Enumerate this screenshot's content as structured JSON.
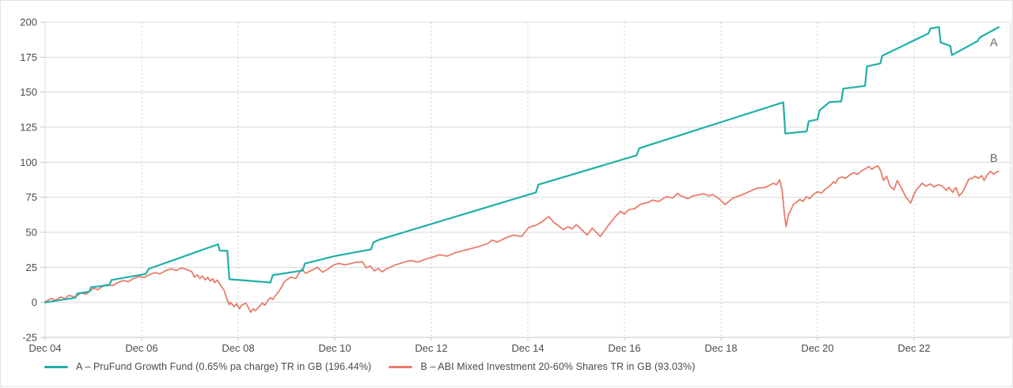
{
  "chart_data": {
    "type": "line",
    "title": "",
    "grid": {
      "horizontal": "solid",
      "vertical": "dotted"
    },
    "legend_position": "bottom-left",
    "x_axis": {
      "unit": "months_since_dec_2004",
      "domain_months": [
        0,
        240
      ],
      "tick_months": [
        0,
        24,
        48,
        72,
        96,
        120,
        144,
        168,
        192,
        216
      ],
      "tick_labels": [
        "Dec 04",
        "Dec 06",
        "Dec 08",
        "Dec 10",
        "Dec 12",
        "Dec 14",
        "Dec 16",
        "Dec 18",
        "Dec 20",
        "Dec 22"
      ]
    },
    "y_axis": {
      "range": [
        -25,
        200
      ],
      "tick_values": [
        200,
        175,
        150,
        125,
        100,
        75,
        50,
        25,
        0,
        -25
      ],
      "tick_labels": [
        "200",
        "175",
        "150",
        "125",
        "100",
        "75",
        "50",
        "25",
        "0",
        "-25"
      ]
    },
    "series": [
      {
        "id": "A",
        "end_label": "A",
        "name": "A – PruFund Growth Fund (0.65% pa charge) TR in GB (196.44%)",
        "final_return_pct": 196.44,
        "color": "#1fb0a6",
        "stroke_width": 2.2,
        "points": [
          [
            0,
            0
          ],
          [
            2,
            0.8
          ],
          [
            5,
            2.2
          ],
          [
            7.5,
            3.3
          ],
          [
            8,
            6.3
          ],
          [
            11,
            7.7
          ],
          [
            11.4,
            10.8
          ],
          [
            16,
            12.3
          ],
          [
            16.5,
            16
          ],
          [
            25,
            20.3
          ],
          [
            25.8,
            24
          ],
          [
            43,
            41.5
          ],
          [
            43.4,
            37
          ],
          [
            45.3,
            36.8
          ],
          [
            45.8,
            16.5
          ],
          [
            49,
            15.8
          ],
          [
            56,
            14.2
          ],
          [
            56.6,
            19.5
          ],
          [
            64,
            22.7
          ],
          [
            64.6,
            27.8
          ],
          [
            72,
            33
          ],
          [
            81,
            37.8
          ],
          [
            81.6,
            42.8
          ],
          [
            83,
            44.7
          ],
          [
            122,
            78.5
          ],
          [
            122.6,
            84
          ],
          [
            147,
            104.9
          ],
          [
            147.7,
            110
          ],
          [
            183.5,
            142.8
          ],
          [
            184,
            120.5
          ],
          [
            189.3,
            122
          ],
          [
            189.8,
            129.3
          ],
          [
            192,
            130.5
          ],
          [
            192.5,
            137
          ],
          [
            195,
            143
          ],
          [
            197.9,
            143.4
          ],
          [
            198.4,
            152.5
          ],
          [
            203.8,
            154.5
          ],
          [
            204.3,
            168.5
          ],
          [
            207.6,
            170.5
          ],
          [
            208.1,
            176
          ],
          [
            219.6,
            192
          ],
          [
            220.1,
            195.5
          ],
          [
            222.2,
            196.5
          ],
          [
            222.6,
            185.5
          ],
          [
            225,
            183
          ],
          [
            225.4,
            176.5
          ],
          [
            231.8,
            186.5
          ],
          [
            232.3,
            189
          ],
          [
            237,
            196.4
          ]
        ]
      },
      {
        "id": "B",
        "end_label": "B",
        "name": "B – ABI Mixed Investment 20-60% Shares TR in GB (93.03%)",
        "final_return_pct": 93.03,
        "color": "#e87d6c",
        "stroke_width": 1.8,
        "points": [
          [
            0,
            0.5
          ],
          [
            1.6,
            2.8
          ],
          [
            2.6,
            1.5
          ],
          [
            3.9,
            3.9
          ],
          [
            4.9,
            2.5
          ],
          [
            5.9,
            5
          ],
          [
            7.5,
            3.9
          ],
          [
            8.9,
            6.7
          ],
          [
            10.2,
            5.8
          ],
          [
            11.2,
            8.4
          ],
          [
            12.2,
            10.1
          ],
          [
            13.2,
            9
          ],
          [
            14.2,
            11.4
          ],
          [
            15.4,
            12.8
          ],
          [
            16.7,
            12
          ],
          [
            18.1,
            14.2
          ],
          [
            19.4,
            15.6
          ],
          [
            20.7,
            14.8
          ],
          [
            22,
            17.1
          ],
          [
            23.3,
            18.4
          ],
          [
            24.6,
            17.8
          ],
          [
            26,
            19.9
          ],
          [
            27.3,
            21.2
          ],
          [
            28.6,
            20.4
          ],
          [
            30,
            22.7
          ],
          [
            31.3,
            24
          ],
          [
            32.6,
            22.7
          ],
          [
            33.9,
            24.6
          ],
          [
            35.2,
            23.5
          ],
          [
            36.5,
            21.8
          ],
          [
            37.1,
            18
          ],
          [
            37.8,
            19.7
          ],
          [
            38.5,
            17
          ],
          [
            39.1,
            18.8
          ],
          [
            39.8,
            16.1
          ],
          [
            40.4,
            17.9
          ],
          [
            41.1,
            15.2
          ],
          [
            41.7,
            16.9
          ],
          [
            42.1,
            14.2
          ],
          [
            42.8,
            15.9
          ],
          [
            43.8,
            11.4
          ],
          [
            44.5,
            8.6
          ],
          [
            45.1,
            2.9
          ],
          [
            45.8,
            -1.7
          ],
          [
            46.1,
            0
          ],
          [
            47,
            -3
          ],
          [
            47.6,
            -0.9
          ],
          [
            48.3,
            -4.6
          ],
          [
            48.9,
            -1.9
          ],
          [
            49.9,
            -0.5
          ],
          [
            50.5,
            -3.5
          ],
          [
            51.1,
            -7
          ],
          [
            51.7,
            -4.5
          ],
          [
            52.3,
            -6
          ],
          [
            53,
            -3.5
          ],
          [
            54,
            -0.5
          ],
          [
            54.6,
            -2
          ],
          [
            55.3,
            1
          ],
          [
            56,
            3.5
          ],
          [
            56.6,
            2
          ],
          [
            57.3,
            5
          ],
          [
            58,
            7.5
          ],
          [
            58.7,
            10.5
          ],
          [
            59.3,
            14
          ],
          [
            60.2,
            16.5
          ],
          [
            61.2,
            18
          ],
          [
            62.3,
            17
          ],
          [
            63.7,
            23.6
          ],
          [
            64.8,
            20.8
          ],
          [
            66,
            22.5
          ],
          [
            67.7,
            25
          ],
          [
            69,
            21.5
          ],
          [
            70.2,
            23.5
          ],
          [
            71.6,
            26.5
          ],
          [
            73,
            27.9
          ],
          [
            74.5,
            26.8
          ],
          [
            75.5,
            27.4
          ],
          [
            77,
            28.5
          ],
          [
            78.9,
            29
          ],
          [
            79.8,
            24.7
          ],
          [
            80.9,
            26
          ],
          [
            81.8,
            22.5
          ],
          [
            82.8,
            24.2
          ],
          [
            83.8,
            21.8
          ],
          [
            84.8,
            23.9
          ],
          [
            86,
            25.3
          ],
          [
            86.8,
            26.5
          ],
          [
            88.8,
            28.3
          ],
          [
            90.7,
            29.9
          ],
          [
            92.7,
            28.8
          ],
          [
            94.7,
            31
          ],
          [
            96.6,
            32.5
          ],
          [
            98,
            34
          ],
          [
            100,
            33
          ],
          [
            102,
            35.5
          ],
          [
            104,
            37
          ],
          [
            106,
            38.5
          ],
          [
            108,
            40
          ],
          [
            110,
            42
          ],
          [
            111.1,
            44.5
          ],
          [
            112.4,
            43
          ],
          [
            114.4,
            46
          ],
          [
            116.4,
            48
          ],
          [
            118.4,
            47
          ],
          [
            120.3,
            53.7
          ],
          [
            122,
            55
          ],
          [
            123.5,
            57.5
          ],
          [
            125.2,
            61.3
          ],
          [
            126.5,
            57
          ],
          [
            127.5,
            55
          ],
          [
            128.8,
            51.9
          ],
          [
            130,
            54
          ],
          [
            131,
            52.5
          ],
          [
            132,
            55.5
          ],
          [
            133,
            53
          ],
          [
            134.7,
            48.1
          ],
          [
            136,
            53
          ],
          [
            138,
            47
          ],
          [
            140,
            55
          ],
          [
            142,
            62
          ],
          [
            143,
            65
          ],
          [
            144,
            63
          ],
          [
            145,
            66
          ],
          [
            146.6,
            67
          ],
          [
            148,
            70
          ],
          [
            150,
            71.5
          ],
          [
            151,
            73
          ],
          [
            152.5,
            72
          ],
          [
            154.4,
            75.5
          ],
          [
            156,
            74.5
          ],
          [
            157.2,
            77.8
          ],
          [
            158,
            76
          ],
          [
            159.8,
            74
          ],
          [
            161,
            76
          ],
          [
            163.7,
            77.5
          ],
          [
            165,
            76
          ],
          [
            166,
            77
          ],
          [
            167.7,
            73.5
          ],
          [
            169,
            69.8
          ],
          [
            171,
            74.5
          ],
          [
            173,
            76.5
          ],
          [
            175,
            79
          ],
          [
            177,
            81.5
          ],
          [
            179,
            82
          ],
          [
            180,
            83.5
          ],
          [
            181,
            85
          ],
          [
            181.8,
            84
          ],
          [
            182.6,
            87.5
          ],
          [
            183.2,
            80
          ],
          [
            183.8,
            62
          ],
          [
            184.2,
            54
          ],
          [
            184.8,
            63
          ],
          [
            185.4,
            66
          ],
          [
            186,
            70
          ],
          [
            186.8,
            71.5
          ],
          [
            187.6,
            73.5
          ],
          [
            188.4,
            72
          ],
          [
            189.2,
            75.5
          ],
          [
            190,
            74
          ],
          [
            191,
            77
          ],
          [
            192,
            79
          ],
          [
            193,
            78
          ],
          [
            194,
            81
          ],
          [
            195,
            83
          ],
          [
            196,
            86
          ],
          [
            196.5,
            85
          ],
          [
            197,
            88
          ],
          [
            198,
            89.5
          ],
          [
            199,
            88.5
          ],
          [
            200,
            91
          ],
          [
            201,
            92.5
          ],
          [
            202,
            91.5
          ],
          [
            203,
            94
          ],
          [
            204,
            95.5
          ],
          [
            204.7,
            97
          ],
          [
            205.5,
            95
          ],
          [
            206.3,
            96.5
          ],
          [
            207,
            97.5
          ],
          [
            207.7,
            94
          ],
          [
            208.4,
            87
          ],
          [
            209.2,
            90
          ],
          [
            210,
            83
          ],
          [
            211,
            80.5
          ],
          [
            211.8,
            87
          ],
          [
            212.8,
            82
          ],
          [
            214,
            75
          ],
          [
            215.2,
            71
          ],
          [
            215.8,
            76
          ],
          [
            216.5,
            80
          ],
          [
            218,
            85
          ],
          [
            219,
            83
          ],
          [
            220,
            84.5
          ],
          [
            221,
            82.5
          ],
          [
            222,
            84
          ],
          [
            223,
            83
          ],
          [
            224,
            80
          ],
          [
            224.7,
            82
          ],
          [
            225.6,
            78.5
          ],
          [
            226.4,
            82
          ],
          [
            227.2,
            76
          ],
          [
            228,
            78.5
          ],
          [
            228.8,
            83
          ],
          [
            229.6,
            88
          ],
          [
            230.4,
            88.5
          ],
          [
            231.2,
            90
          ],
          [
            232,
            88.5
          ],
          [
            232.8,
            90.5
          ],
          [
            233.4,
            87
          ],
          [
            234.2,
            91
          ],
          [
            235,
            93.5
          ],
          [
            235.8,
            91.5
          ],
          [
            236.5,
            93
          ],
          [
            237,
            93.5
          ]
        ]
      }
    ]
  },
  "colors": {
    "grid_solid": "#d8d8d8",
    "grid_dotted": "#cccccc",
    "axis_line": "#c4c4c4",
    "tick_text": "#4b4b4b",
    "end_label_text": "#6f6f6f",
    "panel_border": "#e2e2e2"
  },
  "legend": {
    "items": [
      {
        "label": "A – PruFund Growth Fund (0.65% pa charge) TR in GB (196.44%)"
      },
      {
        "label": "B – ABI Mixed Investment 20-60% Shares TR in GB (93.03%)"
      }
    ]
  }
}
